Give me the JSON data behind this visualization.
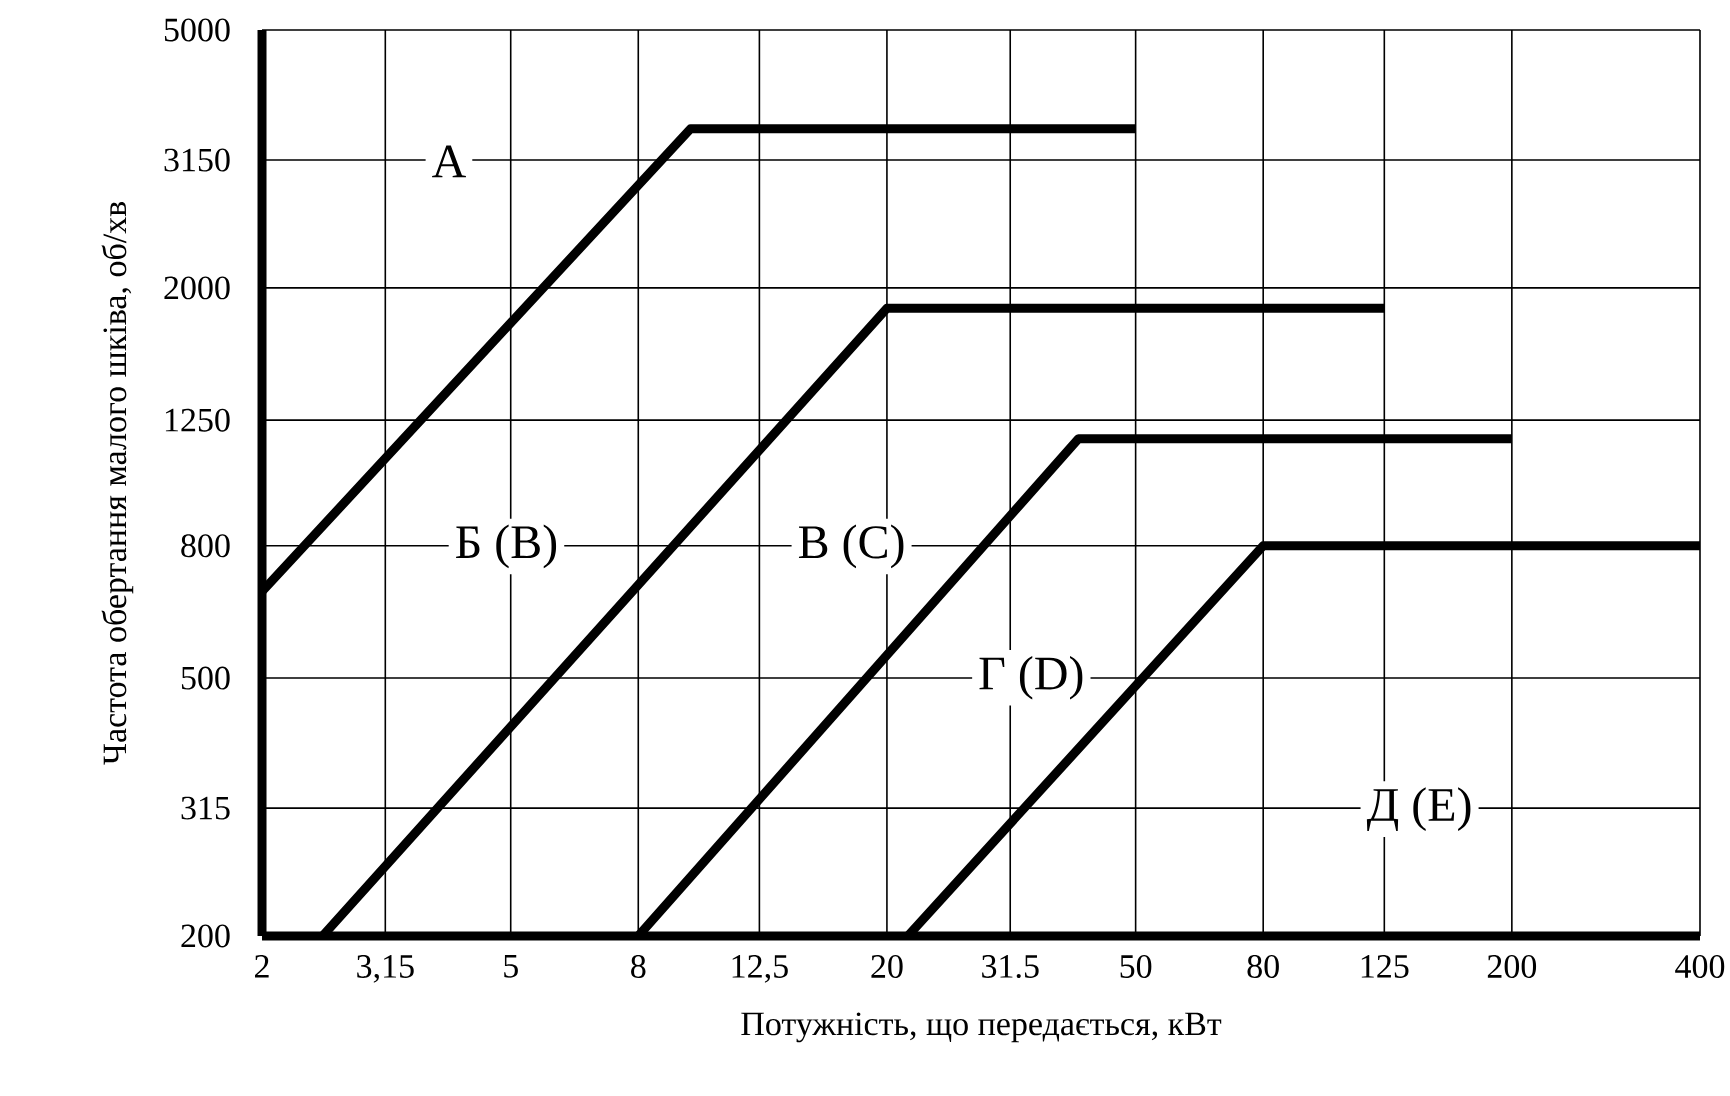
{
  "chart_data": {
    "type": "line",
    "xlabel": "Потужність, що передається, кВт",
    "ylabel": "Частота обертання малого шківа, об/хв",
    "log": "xy",
    "grid": true,
    "marker": "none",
    "line_style": "solid",
    "xlim": [
      2,
      400
    ],
    "ylim": [
      200,
      5000
    ],
    "xticks": [
      2,
      {
        "value": 3.15,
        "label": "3,15"
      },
      5,
      8,
      {
        "value": 12.5,
        "label": "12,5"
      },
      20,
      {
        "value": 31.5,
        "label": "31.5"
      },
      50,
      80,
      125,
      200,
      400
    ],
    "yticks": [
      200,
      315,
      500,
      800,
      1250,
      2000,
      3150,
      5000
    ],
    "series": [
      {
        "color": "#000000",
        "x": [
          2,
          9.7,
          50
        ],
        "values": [
          680,
          3520,
          3520
        ]
      },
      {
        "color": "#000000",
        "x": [
          2.5,
          20,
          125
        ],
        "values": [
          200,
          1860,
          1860
        ]
      },
      {
        "color": "#000000",
        "x": [
          8,
          40.5,
          200
        ],
        "values": [
          200,
          1170,
          1170
        ]
      },
      {
        "color": "#000000",
        "x": [
          21.6,
          80,
          400
        ],
        "values": [
          200,
          800,
          800
        ]
      }
    ],
    "annotations": [
      "А",
      "Б (В)",
      "В (С)",
      "Г (D)",
      "Д (E)"
    ]
  }
}
